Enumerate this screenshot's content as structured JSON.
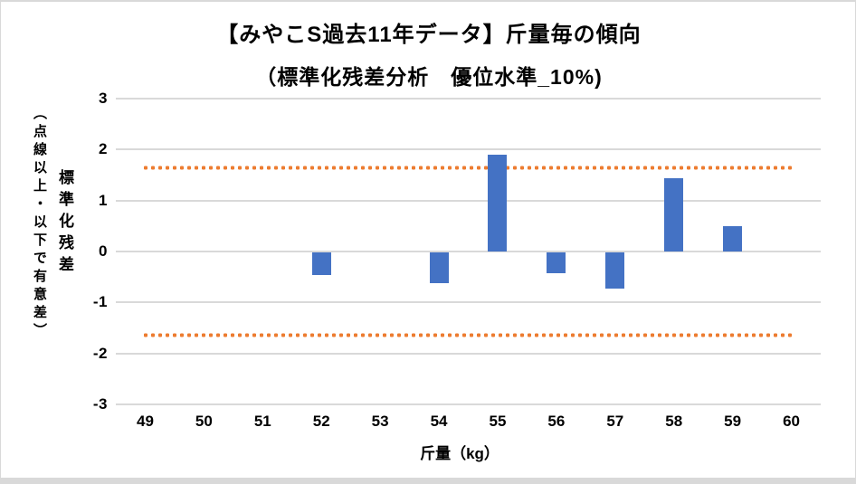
{
  "window": {
    "background": "#FFFFFF",
    "border_color": "#D9D9D9"
  },
  "chart_data": {
    "type": "bar",
    "title": "【みやこS過去11年データ】斤量毎の傾向",
    "subtitle": "（標準化残差分析　優位水準_10%)",
    "xlabel": "斤量（kg）",
    "ylabel": "標準化残差",
    "ylabel_note": "（点線以上・以下で有意差）",
    "categories": [
      49,
      50,
      51,
      52,
      53,
      54,
      55,
      56,
      57,
      58,
      59,
      60
    ],
    "values": [
      0,
      0,
      0,
      -0.45,
      0,
      -0.6,
      1.9,
      -0.41,
      -0.71,
      1.43,
      0.5,
      0
    ],
    "ylim": [
      -3,
      3
    ],
    "yticks": [
      3,
      2,
      1,
      0,
      -1,
      -2,
      -3
    ],
    "significance_thresholds": [
      1.645,
      -1.645
    ],
    "grid": true,
    "legend": "none",
    "colors": {
      "bar": "#4472C4",
      "threshold_dotted": "#ED7D31",
      "gridline": "#D9D9D9",
      "text": "#000000"
    }
  }
}
